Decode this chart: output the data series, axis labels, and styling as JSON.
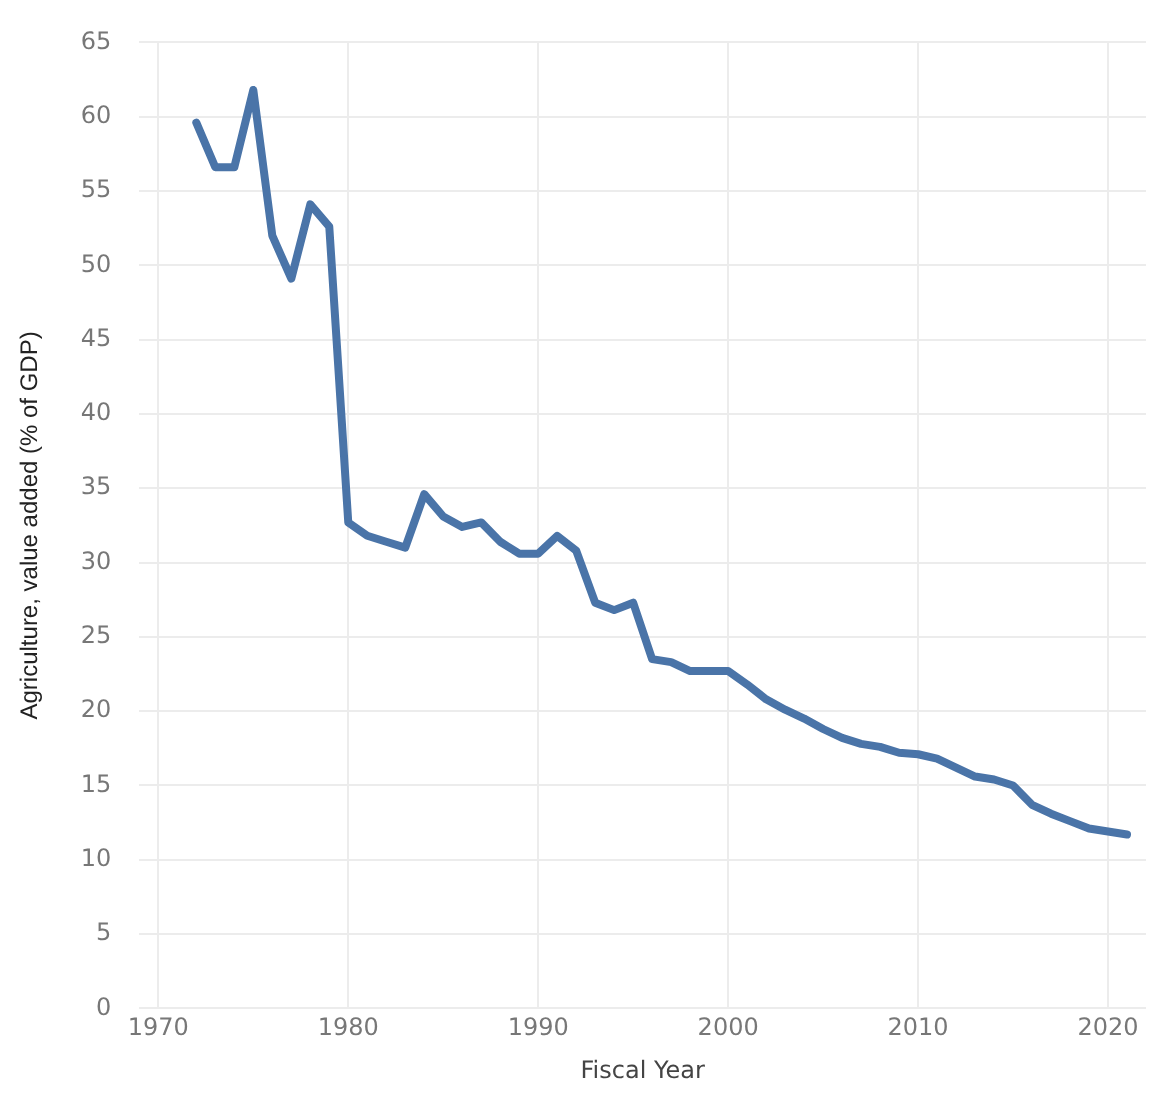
{
  "chart_data": {
    "type": "line",
    "xlabel": "Fiscal Year",
    "ylabel": "Agriculture, value added (% of GDP)",
    "x": [
      1972,
      1973,
      1974,
      1975,
      1976,
      1977,
      1978,
      1979,
      1980,
      1981,
      1982,
      1983,
      1984,
      1985,
      1986,
      1987,
      1988,
      1989,
      1990,
      1991,
      1992,
      1993,
      1994,
      1995,
      1996,
      1997,
      1998,
      1999,
      2000,
      2001,
      2002,
      2003,
      2004,
      2005,
      2006,
      2007,
      2008,
      2009,
      2010,
      2011,
      2012,
      2013,
      2014,
      2015,
      2016,
      2017,
      2018,
      2019,
      2020,
      2021
    ],
    "series": [
      {
        "color": "#4a74a8",
        "values": [
          59.6,
          56.6,
          56.6,
          61.8,
          52,
          49.1,
          54.1,
          52.6,
          32.7,
          31.8,
          31.4,
          31,
          34.6,
          33.1,
          32.4,
          32.7,
          31.4,
          30.6,
          30.6,
          31.8,
          30.8,
          27.3,
          26.8,
          27.3,
          23.5,
          23.3,
          22.7,
          22.7,
          22.7,
          21.8,
          20.8,
          20.1,
          19.5,
          18.8,
          18.2,
          17.8,
          17.6,
          17.2,
          17.1,
          16.8,
          16.2,
          15.6,
          15.4,
          15,
          13.7,
          13.1,
          12.6,
          12.1,
          11.9,
          11.7
        ]
      }
    ],
    "xlim": [
      1969,
      2022
    ],
    "xticks": [
      1970,
      1980,
      1990,
      2000,
      2010,
      2020
    ],
    "ylim": [
      0,
      65
    ],
    "yticks": [
      0,
      5,
      10,
      15,
      20,
      25,
      30,
      35,
      40,
      45,
      50,
      55,
      60,
      65
    ],
    "grid": true,
    "legend": false,
    "marker": "none",
    "line_style": "solid"
  }
}
